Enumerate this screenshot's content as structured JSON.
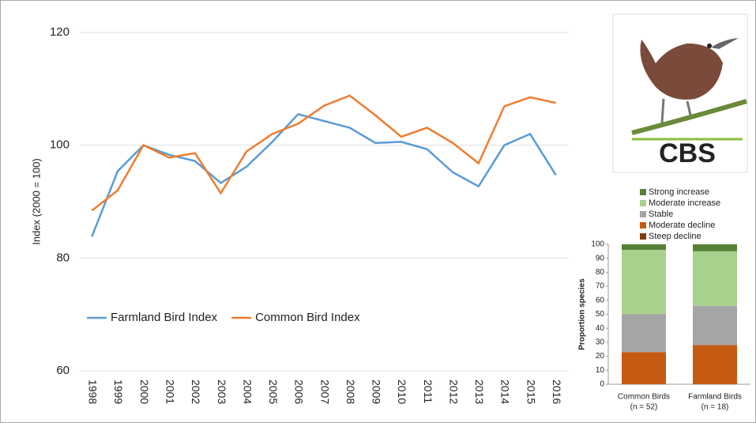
{
  "logo_text": "CBS",
  "chart_data": [
    {
      "type": "line",
      "y_label": "Index (2000 = 100)",
      "categories": [
        "1998",
        "1999",
        "2000",
        "2001",
        "2002",
        "2003",
        "2004",
        "2005",
        "2006",
        "2007",
        "2008",
        "2009",
        "2010",
        "2011",
        "2012",
        "2013",
        "2014",
        "2015",
        "2016"
      ],
      "series": [
        {
          "name": "Farmland Bird Index",
          "color": "#5b9bd5",
          "values": [
            83.8,
            95.4,
            100,
            98.3,
            97.2,
            93.3,
            96.2,
            100.6,
            105.5,
            104.3,
            103.1,
            100.4,
            100.6,
            99.3,
            95.2,
            92.7,
            100,
            102,
            94.7
          ]
        },
        {
          "name": "Common Bird Index",
          "color": "#ed7d31",
          "values": [
            88.4,
            92,
            100,
            97.8,
            98.6,
            91.5,
            98.9,
            102,
            103.8,
            107,
            108.8,
            105.3,
            101.5,
            103.1,
            100.4,
            96.8,
            106.9,
            108.5,
            107.5
          ]
        }
      ],
      "ylim": [
        60,
        120
      ],
      "yticks": [
        60,
        80,
        100,
        120
      ],
      "grid": true,
      "legend": "lower-left"
    },
    {
      "type": "stacked-bar",
      "y_label": "Proportion species",
      "categories": [
        "Common Birds",
        "Farmland Birds"
      ],
      "category_sublabels": [
        "(n = 52)",
        "(n = 18)"
      ],
      "series": [
        {
          "name": "Steep decline",
          "color": "#843c0c",
          "values": [
            0,
            0
          ]
        },
        {
          "name": "Moderate decline",
          "color": "#c55a11",
          "values": [
            23,
            28
          ]
        },
        {
          "name": "Stable",
          "color": "#a5a5a5",
          "values": [
            27,
            28
          ]
        },
        {
          "name": "Moderate increase",
          "color": "#a9d18e",
          "values": [
            46,
            39
          ]
        },
        {
          "name": "Strong increase",
          "color": "#548235",
          "values": [
            4,
            5
          ]
        }
      ],
      "ylim": [
        0,
        100
      ],
      "yticks": [
        0,
        10,
        20,
        30,
        40,
        50,
        60,
        70,
        80,
        90,
        100
      ],
      "grid": false,
      "legend": "top"
    }
  ]
}
